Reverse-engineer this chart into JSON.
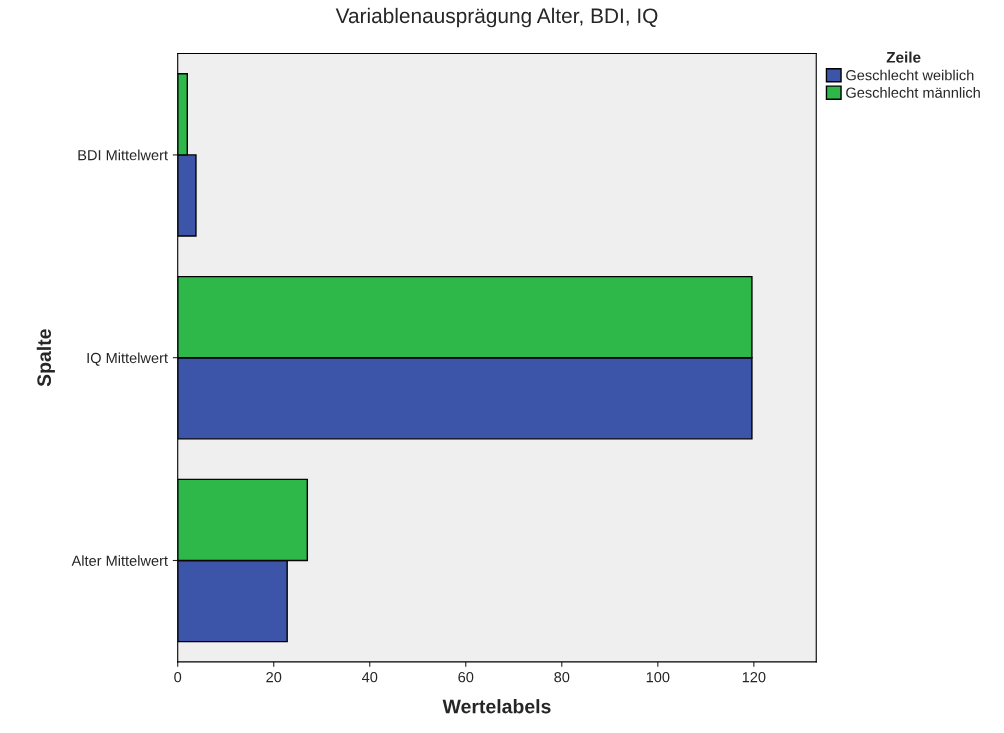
{
  "chart_data": {
    "type": "bar",
    "orientation": "horizontal",
    "title": "Variablenausprägung Alter, BDI, IQ",
    "xlabel": "Wertelabels",
    "ylabel": "Spalte",
    "legend_title": "Zeile",
    "categories": [
      "BDI Mittelwert",
      "IQ Mittelwert",
      "Alter Mittelwert"
    ],
    "series": [
      {
        "name": "Geschlecht weiblich",
        "color": "#3d55a8",
        "values": [
          3.8,
          119.6,
          22.8
        ]
      },
      {
        "name": "Geschlecht männlich",
        "color": "#2fb84a",
        "values": [
          2.0,
          119.6,
          27.0
        ]
      }
    ],
    "xlim": [
      0,
      133
    ],
    "xticks": [
      0,
      20,
      40,
      60,
      80,
      100,
      120
    ],
    "grid": false,
    "legend": "top right"
  }
}
